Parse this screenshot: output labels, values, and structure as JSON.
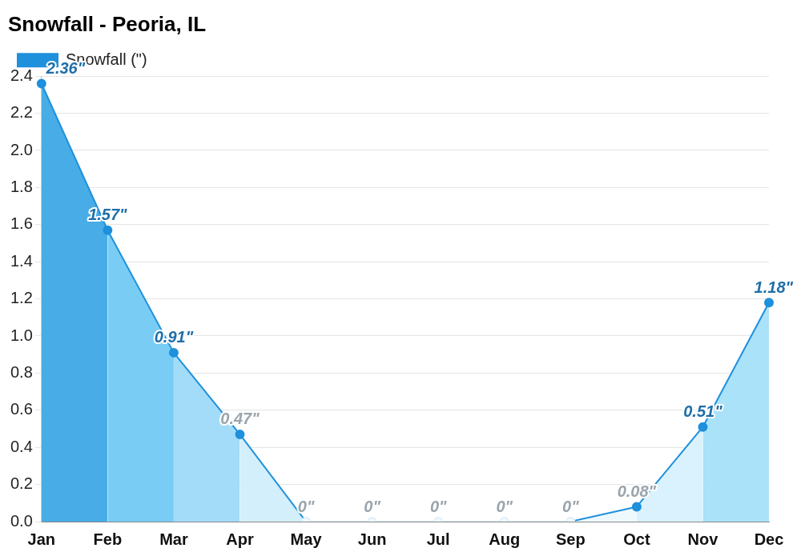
{
  "chart_data": {
    "type": "area",
    "title": "Snowfall - Peoria, IL",
    "categories": [
      "Jan",
      "Feb",
      "Mar",
      "Apr",
      "May",
      "Jun",
      "Jul",
      "Aug",
      "Sep",
      "Oct",
      "Nov",
      "Dec"
    ],
    "series": [
      {
        "name": "Snowfall (\")",
        "color": "#1e90dc",
        "colors": [
          "#48ade6",
          "#79cdf5",
          "#a3dcf8",
          "#d3effc",
          "#eef9fe",
          "#eef9fe",
          "#eef9fe",
          "#eef9fe",
          "#eef9fe",
          "#d9f2fd",
          "#a9e2f9",
          "#6fcbf5"
        ],
        "values": [
          2.36,
          1.57,
          0.91,
          0.47,
          0,
          0,
          0,
          0,
          0,
          0.08,
          0.51,
          1.18
        ],
        "value_labels": [
          "2.36\"",
          "1.57\"",
          "0.91\"",
          "0.47\"",
          "0\"",
          "0\"",
          "0\"",
          "0\"",
          "0\"",
          "0.08\"",
          "0.51\"",
          "1.18\""
        ]
      }
    ],
    "ylim": [
      0,
      2.4
    ],
    "yticks": [
      {
        "value": 0,
        "label": "0.0"
      },
      0.2,
      0.4,
      0.6,
      0.8,
      {
        "value": 1,
        "label": "1.0"
      },
      1.2,
      1.4,
      1.6,
      1.8,
      {
        "value": 2,
        "label": "2.0"
      },
      2.2,
      2.4
    ],
    "grid": true,
    "legend": "top-left",
    "data_labels": true,
    "marker": "circle"
  }
}
